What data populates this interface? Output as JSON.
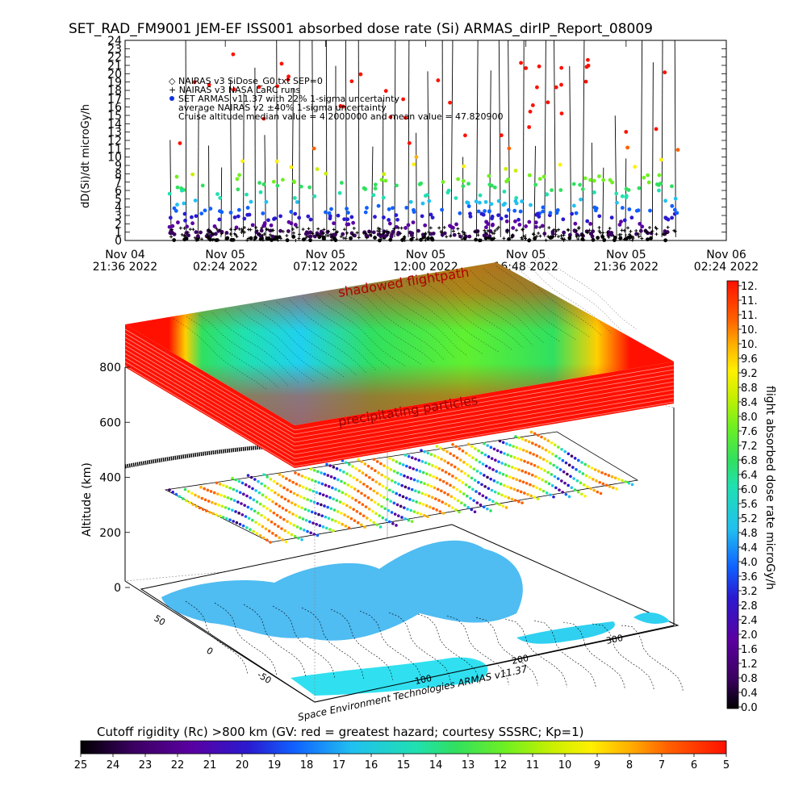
{
  "chart_data": [
    {
      "type": "scatter",
      "title": "SET_RAD_FM9001  JEM-EF ISS001 absorbed dose rate (Si) ARMAS_dirIP_Report_08009",
      "ylabel": "dD(Si)/dt microGy/h",
      "ylim": [
        0,
        24
      ],
      "y_ticks": [
        "0",
        "1",
        "2",
        "3",
        "4",
        "5",
        "6",
        "7",
        "8",
        "9",
        "10",
        "11",
        "12",
        "13",
        "14",
        "15",
        "16",
        "17",
        "18",
        "19",
        "20",
        "21",
        "22",
        "23",
        "24"
      ],
      "x_ticks": [
        {
          "line1": "Nov 04",
          "line2": "21:36 2022"
        },
        {
          "line1": "Nov 05",
          "line2": "02:24 2022"
        },
        {
          "line1": "Nov 05",
          "line2": "07:12 2022"
        },
        {
          "line1": "Nov 05",
          "line2": "12:00 2022"
        },
        {
          "line1": "Nov 05",
          "line2": "16:48 2022"
        },
        {
          "line1": "Nov 05",
          "line2": "21:36 2022"
        },
        {
          "line1": "Nov 06",
          "line2": "02:24 2022"
        }
      ],
      "legend": [
        "◇ NAIRAS v3 SiDose_G0.txt SEP=0",
        "+ NAIRAS v3 NASA LaRC runs",
        "SET ARMAS v11.37 with 22% 1-sigma uncertainty",
        "average NAIRAS v2 ±40% 1-sigma uncertainty",
        "Cruise altitude median value = 4.2000000 and mean value = 47.820900"
      ],
      "legend_placement": "top-left",
      "series_note": "ARMAS dose rate points colored by value using the right-hand color scale",
      "median": 4.2,
      "mean": 47.8209
    },
    {
      "type": "surface",
      "zlabel": "Altitude (km)",
      "z_ticks": [
        "0",
        "200",
        "400",
        "600",
        "800"
      ],
      "lat_ticks": [
        "50",
        "0",
        "-50"
      ],
      "lon_ticks": [
        "100",
        "200",
        "300"
      ],
      "annotations": [
        "shadowed flightpath",
        "precipitating particles"
      ],
      "credit": "Space Environment Technologies ARMAS v11.37"
    },
    {
      "type": "colorbar",
      "label": "flight absorbed dose rate microGy/h",
      "ticks": [
        "12.",
        "11.",
        "11.",
        "10.",
        "10.",
        "9.6",
        "9.2",
        "8.8",
        "8.4",
        "8.0",
        "7.6",
        "7.2",
        "6.8",
        "6.4",
        "6.0",
        "5.6",
        "5.2",
        "4.8",
        "4.4",
        "4.0",
        "3.6",
        "3.2",
        "2.8",
        "2.4",
        "2.0",
        "1.6",
        "1.2",
        "0.8",
        "0.4",
        "0.0"
      ]
    },
    {
      "type": "colorbar",
      "label": "Cutoff rigidity (Rc) >800 km (GV: red = greatest hazard; courtesy SSSRC; Kp=1)",
      "ticks": [
        "25",
        "24",
        "23",
        "22",
        "21",
        "20",
        "19",
        "18",
        "17",
        "16",
        "15",
        "14",
        "13",
        "12",
        "11",
        "10",
        "9",
        "8",
        "7",
        "6",
        "5"
      ]
    }
  ],
  "colors": {
    "scale": [
      "#000000",
      "#3a0060",
      "#5a00a0",
      "#2a1ad0",
      "#1060ff",
      "#20c0f0",
      "#20e0b0",
      "#30e060",
      "#70f020",
      "#c8f000",
      "#fff000",
      "#ffb000",
      "#ff6000",
      "#ff1000"
    ],
    "axis": "#000000"
  }
}
